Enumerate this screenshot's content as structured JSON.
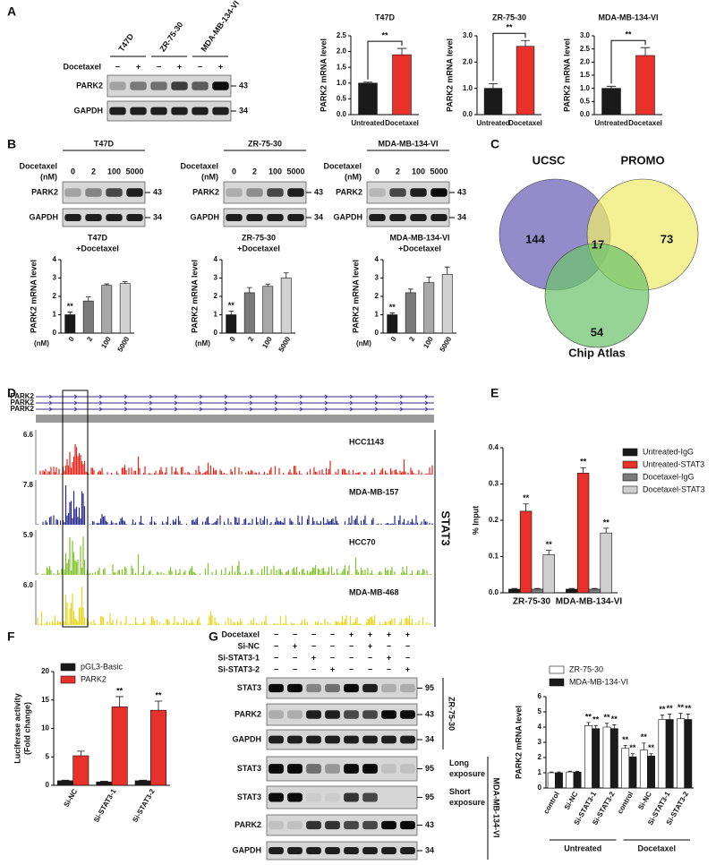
{
  "panel_labels": [
    "A",
    "B",
    "C",
    "D",
    "E",
    "F",
    "G"
  ],
  "blot_a": {
    "cell_lines": [
      "T47D",
      "ZR-75-30",
      "MDA-MB-134-VI"
    ],
    "treatment": "Docetaxel",
    "signs": [
      "−",
      "+",
      "−",
      "+",
      "−",
      "+"
    ],
    "rows": [
      "PARK2",
      "GAPDH"
    ],
    "sizes": [
      43,
      34
    ]
  },
  "blot_b": [
    {
      "title": "T47D",
      "treatment": [
        "Docetaxel",
        "(nM)"
      ],
      "doses": [
        0,
        2,
        100,
        5000
      ],
      "rows": [
        "PARK2",
        "GAPDH"
      ],
      "sizes": [
        43,
        34
      ]
    },
    {
      "title": "ZR-75-30",
      "treatment": [
        "Docetaxel",
        "(nM)"
      ],
      "doses": [
        0,
        2,
        100,
        5000
      ],
      "rows": [
        "PARK2",
        "GAPDH"
      ],
      "sizes": [
        43,
        34
      ]
    },
    {
      "title": "MDA-MB-134-VI",
      "treatment": [
        "Docetaxel",
        "(nM)"
      ],
      "doses": [
        0,
        2,
        100,
        5000
      ],
      "rows": [
        "PARK2",
        "GAPDH"
      ],
      "sizes": [
        43,
        34
      ]
    }
  ],
  "venn": {
    "sets": [
      {
        "name": "UCSC",
        "count": 144,
        "color": "#6b5fb5"
      },
      {
        "name": "PROMO",
        "count": 73,
        "color": "#eeec6b"
      },
      {
        "name": "Chip Atlas",
        "count": 54,
        "color": "#6cc46c"
      }
    ],
    "shared": 17
  },
  "tracks": {
    "genes": [
      "PARK2",
      "PARK2",
      "PARK2"
    ],
    "factor": "STAT3",
    "samples": [
      {
        "name": "HCC1143",
        "max": "6.6",
        "color": "#e3261c"
      },
      {
        "name": "MDA-MB-157",
        "max": "7.8",
        "color": "#262b8c"
      },
      {
        "name": "HCC70",
        "max": "5.9",
        "color": "#7fc22b"
      },
      {
        "name": "MDA-MB-468",
        "max": "6.0",
        "color": "#e8d51e"
      }
    ]
  },
  "blot_g": {
    "treatments": [
      {
        "name": "Docetaxel",
        "signs": [
          "−",
          "−",
          "−",
          "−",
          "+",
          "+",
          "+",
          "+"
        ]
      },
      {
        "name": "Si-NC",
        "signs": [
          "−",
          "+",
          "−",
          "−",
          "−",
          "+",
          "−",
          "−"
        ]
      },
      {
        "name": "Si-STAT3-1",
        "signs": [
          "−",
          "−",
          "+",
          "−",
          "−",
          "−",
          "+",
          "−"
        ]
      },
      {
        "name": "Si-STAT3-2",
        "signs": [
          "−",
          "−",
          "−",
          "+",
          "−",
          "−",
          "−",
          "+"
        ]
      }
    ],
    "cell_lines": [
      "ZR-75-30",
      "MDA-MB-134-VI"
    ],
    "rows": [
      {
        "name": "STAT3",
        "size": 95
      },
      {
        "name": "PARK2",
        "size": 43
      },
      {
        "name": "GAPDH",
        "size": 34
      },
      {
        "name": "STAT3",
        "size": 95,
        "note": [
          "Long",
          "exposure"
        ]
      },
      {
        "name": "STAT3",
        "size": 95,
        "note": [
          "Short",
          "exposure"
        ]
      },
      {
        "name": "PARK2",
        "size": 43
      },
      {
        "name": "GAPDH",
        "size": 34
      }
    ]
  },
  "chart_data": [
    {
      "type": "bar",
      "title": "T47D",
      "ylabel": "PARK2 mRNA level",
      "categories": [
        "Untreated",
        "Docetaxel"
      ],
      "values": [
        1.0,
        1.9
      ],
      "errors": [
        0.03,
        0.2
      ],
      "colors": [
        "#1a1a1a",
        "#e8312a"
      ],
      "bracket": "**",
      "ylim": [
        0,
        2.5
      ],
      "yticks": [
        {
          "value": 0,
          "label": "0.0"
        },
        {
          "value": 0.5,
          "label": "0.5"
        },
        {
          "value": 1,
          "label": "1.0"
        },
        {
          "value": 1.5,
          "label": "1.5"
        },
        {
          "value": 2,
          "label": "2.0"
        },
        {
          "value": 2.5,
          "label": "2.5"
        }
      ]
    },
    {
      "type": "bar",
      "title": "ZR-75-30",
      "ylabel": "PARK2 mRNA level",
      "categories": [
        "Untreated",
        "Docetaxel"
      ],
      "values": [
        1.0,
        2.6
      ],
      "errors": [
        0.18,
        0.22
      ],
      "colors": [
        "#1a1a1a",
        "#e8312a"
      ],
      "bracket": "**",
      "ylim": [
        0,
        3
      ],
      "yticks": [
        {
          "value": 0,
          "label": "0.0"
        },
        {
          "value": 1,
          "label": "1.0"
        },
        {
          "value": 2,
          "label": "2.0"
        },
        {
          "value": 3,
          "label": "3.0"
        }
      ]
    },
    {
      "type": "bar",
      "title": "MDA-MB-134-VI",
      "ylabel": "PARK2 mRNA level",
      "categories": [
        "Untreated",
        "Docetaxel"
      ],
      "values": [
        1.0,
        2.25
      ],
      "errors": [
        0.08,
        0.3
      ],
      "colors": [
        "#1a1a1a",
        "#e8312a"
      ],
      "bracket": "**",
      "ylim": [
        0,
        3
      ],
      "yticks": [
        {
          "value": 0,
          "label": "0.0"
        },
        {
          "value": 0.5,
          "label": "0.5"
        },
        {
          "value": 1,
          "label": "1.0"
        },
        {
          "value": 1.5,
          "label": "1.5"
        },
        {
          "value": 2,
          "label": "2.0"
        },
        {
          "value": 2.5,
          "label": "2.5"
        },
        {
          "value": 3,
          "label": "3.0"
        }
      ]
    },
    {
      "type": "bar",
      "title": [
        "T47D",
        "+Docetaxel"
      ],
      "ylabel": "PARK2 mRNA level",
      "xlabel": "(nM)",
      "categories": [
        "0",
        "2",
        "100",
        "5000"
      ],
      "values": [
        1.0,
        1.75,
        2.6,
        2.7
      ],
      "errors": [
        0.15,
        0.22,
        0.08,
        0.1
      ],
      "colors": [
        "#1a1a1a",
        "#7a7a7a",
        "#a8a8a8",
        "#d2d2d2"
      ],
      "significance": [
        "**",
        null,
        null,
        null
      ],
      "ylim": [
        0,
        4
      ],
      "yticks": [
        0,
        1,
        2,
        3,
        4
      ]
    },
    {
      "type": "bar",
      "title": [
        "ZR-75-30",
        "+Docetaxel"
      ],
      "ylabel": "PARK2 mRNA level",
      "xlabel": "(nM)",
      "categories": [
        "0",
        "2",
        "100",
        "5000"
      ],
      "values": [
        1.0,
        2.2,
        2.55,
        3.0
      ],
      "errors": [
        0.2,
        0.28,
        0.12,
        0.28
      ],
      "colors": [
        "#1a1a1a",
        "#7a7a7a",
        "#a8a8a8",
        "#d2d2d2"
      ],
      "significance": [
        "**",
        null,
        null,
        null
      ],
      "ylim": [
        0,
        4
      ],
      "yticks": [
        0,
        1,
        2,
        3,
        4
      ]
    },
    {
      "type": "bar",
      "title": [
        "MDA-MB-134-VI",
        "+Docetaxel"
      ],
      "ylabel": "PARK2 mRNA level",
      "xlabel": "(nM)",
      "categories": [
        "0",
        "2",
        "100",
        "5000"
      ],
      "values": [
        1.0,
        2.2,
        2.75,
        3.2
      ],
      "errors": [
        0.1,
        0.2,
        0.3,
        0.4
      ],
      "colors": [
        "#1a1a1a",
        "#7a7a7a",
        "#a8a8a8",
        "#d2d2d2"
      ],
      "significance": [
        "**",
        null,
        null,
        null
      ],
      "ylim": [
        0,
        4
      ],
      "yticks": [
        0,
        1,
        2,
        3,
        4
      ]
    },
    {
      "type": "bar",
      "ylabel": "% Input",
      "categories": [
        "ZR-75-30",
        "MDA-MB-134-VI"
      ],
      "series": [
        {
          "name": "Untreated-IgG",
          "color": "#1a1a1a",
          "values": [
            0.01,
            0.01
          ],
          "errors": [
            0.002,
            0.002
          ]
        },
        {
          "name": "Untreated-STAT3",
          "color": "#e8312a",
          "values": [
            0.225,
            0.33
          ],
          "errors": [
            0.02,
            0.015
          ],
          "significance": [
            "**",
            "**"
          ]
        },
        {
          "name": "Docetaxel-IgG",
          "color": "#7a7a7a",
          "values": [
            0.01,
            0.01
          ],
          "errors": [
            0.002,
            0.002
          ]
        },
        {
          "name": "Docetaxel-STAT3",
          "color": "#cfcfcf",
          "values": [
            0.105,
            0.165
          ],
          "errors": [
            0.012,
            0.013
          ],
          "significance": [
            "**",
            "**"
          ]
        }
      ],
      "ylim": [
        0,
        0.4
      ],
      "yticks": [
        {
          "value": 0,
          "label": "0.0"
        },
        0.1,
        0.2,
        0.3,
        0.4
      ]
    },
    {
      "type": "bar",
      "ylabel": [
        "Luciferase activity",
        "(Fold change)"
      ],
      "categories": [
        "Si-NC",
        "Si-STAT3-1",
        "Si-STAT3-2"
      ],
      "series": [
        {
          "name": "pGL3-Basic",
          "color": "#1a1a1a",
          "values": [
            0.8,
            0.6,
            0.8
          ],
          "errors": [
            0.1,
            0.1,
            0.1
          ]
        },
        {
          "name": "PARK2",
          "color": "#e8312a",
          "values": [
            5.2,
            13.8,
            13.2
          ],
          "errors": [
            0.8,
            1.8,
            1.6
          ],
          "significance": [
            null,
            "**",
            "**"
          ]
        }
      ],
      "ylim": [
        0,
        20
      ],
      "yticks": [
        0,
        5,
        10,
        15,
        20
      ]
    },
    {
      "type": "bar",
      "ylabel": "PARK2 mRNA level",
      "categories": [
        "control",
        "Si-NC",
        "Si-STAT3-1",
        "Si-STAT3-2",
        "control",
        "Si-NC",
        "Si-STAT3-1",
        "Si-STAT3-2"
      ],
      "groups": [
        "Untreated",
        "Docetaxel"
      ],
      "series": [
        {
          "name": "ZR-75-30",
          "color": "#ffffff",
          "values": [
            1.0,
            1.05,
            4.1,
            4.0,
            2.6,
            2.5,
            4.5,
            4.55
          ],
          "errors": [
            0.05,
            0.05,
            0.2,
            0.25,
            0.2,
            0.45,
            0.3,
            0.35
          ],
          "significance": [
            null,
            null,
            "**",
            "**",
            "**",
            "**",
            "**",
            "**"
          ]
        },
        {
          "name": "MDA-MB-134-VI",
          "color": "#1a1a1a",
          "values": [
            1.0,
            1.05,
            3.9,
            3.9,
            2.05,
            2.1,
            4.5,
            4.5
          ],
          "errors": [
            0.05,
            0.05,
            0.2,
            0.25,
            0.2,
            0.15,
            0.35,
            0.35
          ],
          "significance": [
            null,
            null,
            "**",
            "**",
            "**",
            "**",
            "**",
            "**"
          ]
        }
      ],
      "ylim": [
        0,
        6
      ],
      "yticks": [
        0,
        1,
        2,
        3,
        4,
        5,
        6
      ]
    }
  ]
}
